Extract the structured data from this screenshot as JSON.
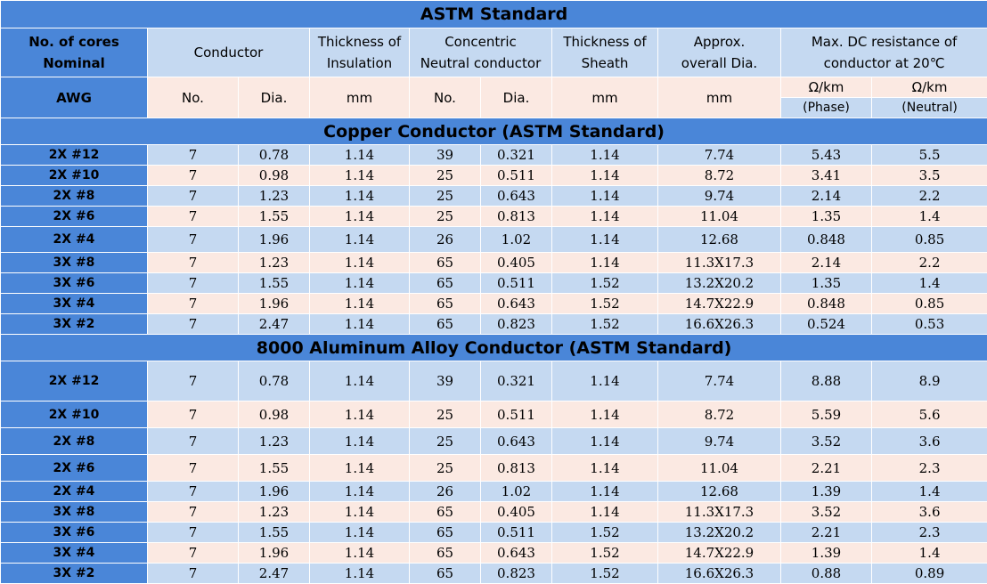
{
  "title": "ASTM Standard",
  "header": {
    "cores_label": [
      "No. of cores",
      "Nominal"
    ],
    "conductor": "Conductor",
    "insulation": [
      "Thickness of",
      "Insulation"
    ],
    "neutral": [
      "Concentric",
      "Neutral conductor"
    ],
    "sheath": [
      "Thickness of",
      "Sheath"
    ],
    "overall": [
      "Approx.",
      "overall Dia."
    ],
    "resistance": [
      "Max. DC resistance of",
      "conductor at 20℃"
    ],
    "awg": "AWG",
    "no": "No.",
    "dia": "Dia.",
    "mm": "mm",
    "ohm": "Ω/km",
    "phase": "(Phase)",
    "neutral_label": "(Neutral)"
  },
  "sections": [
    {
      "title": "Copper Conductor (ASTM Standard)",
      "rows": [
        [
          "2X #12",
          "7",
          "0.78",
          "1.14",
          "39",
          "0.321",
          "1.14",
          "7.74",
          "5.43",
          "5.5"
        ],
        [
          "2X #10",
          "7",
          "0.98",
          "1.14",
          "25",
          "0.511",
          "1.14",
          "8.72",
          "3.41",
          "3.5"
        ],
        [
          "2X #8",
          "7",
          "1.23",
          "1.14",
          "25",
          "0.643",
          "1.14",
          "9.74",
          "2.14",
          "2.2"
        ],
        [
          "2X #6",
          "7",
          "1.55",
          "1.14",
          "25",
          "0.813",
          "1.14",
          "11.04",
          "1.35",
          "1.4"
        ],
        [
          "2X #4",
          "7",
          "1.96",
          "1.14",
          "26",
          "1.02",
          "1.14",
          "12.68",
          "0.848",
          "0.85"
        ],
        [
          "3X #8",
          "7",
          "1.23",
          "1.14",
          "65",
          "0.405",
          "1.14",
          "11.3X17.3",
          "2.14",
          "2.2"
        ],
        [
          "3X #6",
          "7",
          "1.55",
          "1.14",
          "65",
          "0.511",
          "1.52",
          "13.2X20.2",
          "1.35",
          "1.4"
        ],
        [
          "3X #4",
          "7",
          "1.96",
          "1.14",
          "65",
          "0.643",
          "1.52",
          "14.7X22.9",
          "0.848",
          "0.85"
        ],
        [
          "3X #2",
          "7",
          "2.47",
          "1.14",
          "65",
          "0.823",
          "1.52",
          "16.6X26.3",
          "0.524",
          "0.53"
        ]
      ]
    },
    {
      "title": "8000 Aluminum Alloy Conductor (ASTM Standard)",
      "rows": [
        [
          "2X #12",
          "7",
          "0.78",
          "1.14",
          "39",
          "0.321",
          "1.14",
          "7.74",
          "8.88",
          "8.9"
        ],
        [
          "2X #10",
          "7",
          "0.98",
          "1.14",
          "25",
          "0.511",
          "1.14",
          "8.72",
          "5.59",
          "5.6"
        ],
        [
          "2X #8",
          "7",
          "1.23",
          "1.14",
          "25",
          "0.643",
          "1.14",
          "9.74",
          "3.52",
          "3.6"
        ],
        [
          "2X #6",
          "7",
          "1.55",
          "1.14",
          "25",
          "0.813",
          "1.14",
          "11.04",
          "2.21",
          "2.3"
        ],
        [
          "2X #4",
          "7",
          "1.96",
          "1.14",
          "26",
          "1.02",
          "1.14",
          "12.68",
          "1.39",
          "1.4"
        ],
        [
          "3X #8",
          "7",
          "1.23",
          "1.14",
          "65",
          "0.405",
          "1.14",
          "11.3X17.3",
          "3.52",
          "3.6"
        ],
        [
          "3X #6",
          "7",
          "1.55",
          "1.14",
          "65",
          "0.511",
          "1.52",
          "13.2X20.2",
          "2.21",
          "2.3"
        ],
        [
          "3X #4",
          "7",
          "1.96",
          "1.14",
          "65",
          "0.643",
          "1.52",
          "14.7X22.9",
          "1.39",
          "1.4"
        ],
        [
          "3X #2",
          "7",
          "2.47",
          "1.14",
          "65",
          "0.823",
          "1.52",
          "16.6X26.3",
          "0.88",
          "0.89"
        ]
      ]
    }
  ],
  "colors": {
    "header_blue": "#4a86d8",
    "light_blue": "#c5d9f1",
    "light_pink": "#fbe9e2"
  }
}
